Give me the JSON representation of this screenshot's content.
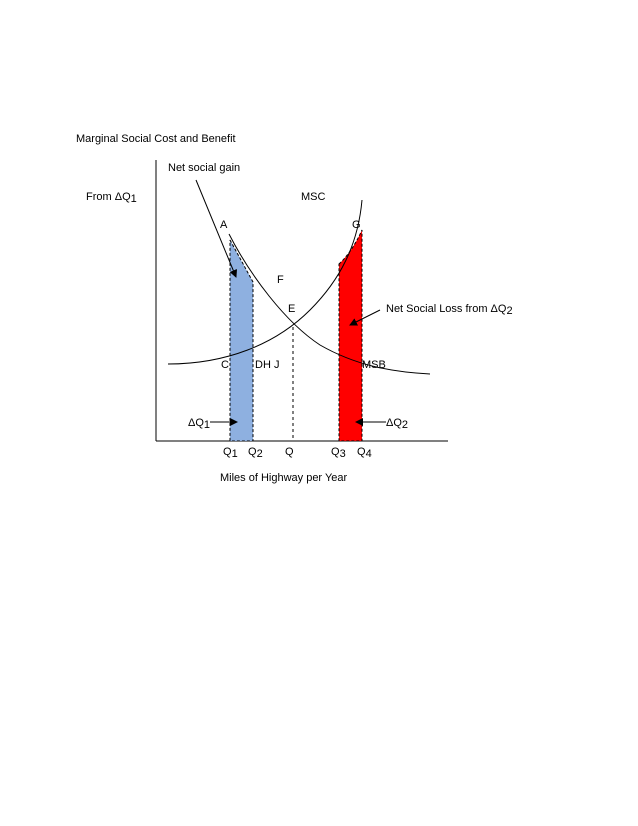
{
  "title": "Marginal Social Cost and Benefit",
  "net_social_gain_label": "Net social gain",
  "from_label": {
    "prefix": "From ",
    "main": "ΔQ",
    "sub": "1"
  },
  "net_social_loss_label": {
    "prefix": "Net Social Loss from ",
    "main": "ΔQ",
    "sub": "2"
  },
  "curves": {
    "msc": "MSC",
    "msb": "MSB"
  },
  "points": {
    "a": "A",
    "g": "G",
    "f": "F",
    "e": "E",
    "c": "C",
    "dhj": "DH J"
  },
  "delta_q1": {
    "main": "ΔQ",
    "sub": "1"
  },
  "delta_q2": {
    "main": "ΔQ",
    "sub": "2"
  },
  "x_ticks": {
    "q1": {
      "main": "Q",
      "sub": "1"
    },
    "q2": {
      "main": "Q",
      "sub": "2"
    },
    "q": {
      "main": "Q",
      "sub": ""
    },
    "q3": {
      "main": "Q",
      "sub": "3"
    },
    "q4": {
      "main": "Q",
      "sub": "4"
    }
  },
  "xlabel": "Miles of Highway per Year",
  "colors": {
    "gain_fill": "#8eb0e0",
    "loss_fill": "#ff0000",
    "line": "#000000"
  }
}
